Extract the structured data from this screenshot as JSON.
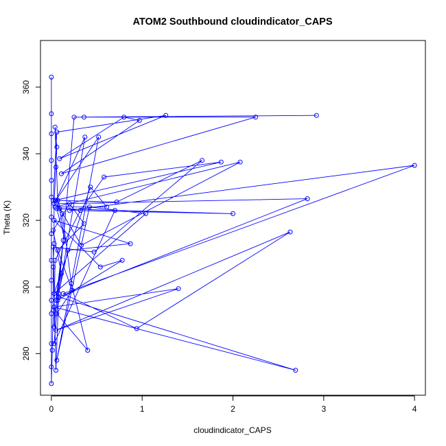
{
  "chart_data": {
    "type": "line",
    "markers": "open-circle",
    "title": "ATOM2 Southbound cloudindicator_CAPS",
    "xlabel": "cloudindicator_CAPS",
    "ylabel": "Theta (K)",
    "xlim": [
      -0.12,
      4.12
    ],
    "ylim": [
      267.5,
      374
    ],
    "xticks": [
      0,
      1,
      2,
      3,
      4
    ],
    "yticks": [
      280,
      300,
      320,
      340,
      360
    ],
    "grid": false,
    "legend": "none",
    "colors": {
      "series": "#0000ff",
      "axes": "#000000"
    },
    "series": [
      {
        "name": "cloudindicator_CAPS",
        "points": [
          [
            0,
            363
          ],
          [
            0,
            352
          ],
          [
            0,
            346
          ],
          [
            0,
            338
          ],
          [
            0,
            332
          ],
          [
            0,
            327
          ],
          [
            0,
            321
          ],
          [
            0,
            316
          ],
          [
            0,
            308
          ],
          [
            0,
            302
          ],
          [
            0,
            296
          ],
          [
            0,
            292
          ],
          [
            0,
            283
          ],
          [
            0,
            276
          ],
          [
            0,
            271
          ],
          [
            0.01,
            281
          ],
          [
            0.02,
            293
          ],
          [
            0.02,
            306
          ],
          [
            0.03,
            313
          ],
          [
            0.03,
            325
          ],
          [
            0.05,
            336
          ],
          [
            0.06,
            342
          ],
          [
            0.04,
            348
          ],
          [
            0.07,
            326
          ],
          [
            0.12,
            322
          ],
          [
            0.22,
            301
          ],
          [
            0.4,
            281
          ],
          [
            0.06,
            292
          ],
          [
            0.23,
            299
          ],
          [
            0.07,
            311
          ],
          [
            0.36,
            319
          ],
          [
            0.2,
            325
          ],
          [
            0.02,
            317
          ],
          [
            0.11,
            304
          ],
          [
            0.05,
            296
          ],
          [
            0.13,
            314
          ],
          [
            0.03,
            288
          ],
          [
            0.04,
            308
          ],
          [
            0.32,
            323
          ],
          [
            0.58,
            333
          ],
          [
            1.87,
            337.5
          ],
          [
            0.04,
            326
          ],
          [
            0.72,
            325.5
          ],
          [
            1.66,
            338
          ],
          [
            0.47,
            310.5
          ],
          [
            0.02,
            312
          ],
          [
            0.05,
            275
          ],
          [
            0.08,
            298
          ],
          [
            0.18,
            311
          ],
          [
            0.87,
            313
          ],
          [
            0.03,
            320
          ],
          [
            0.54,
            306
          ],
          [
            0.78,
            308
          ],
          [
            0.07,
            296
          ],
          [
            0.37,
            345
          ],
          [
            0.05,
            326
          ],
          [
            0.52,
            345
          ],
          [
            0.06,
            278
          ],
          [
            0.42,
            324
          ],
          [
            1.04,
            322
          ],
          [
            0.03,
            298
          ],
          [
            0.43,
            330
          ],
          [
            0.61,
            324
          ],
          [
            0.04,
            324
          ],
          [
            2.08,
            337.5
          ],
          [
            0.33,
            312.5
          ],
          [
            0.06,
            325
          ],
          [
            2.82,
            326.5
          ],
          [
            0.08,
            297
          ],
          [
            2.69,
            275
          ],
          [
            0.03,
            294
          ],
          [
            1.4,
            299.5
          ],
          [
            0.05,
            287
          ],
          [
            2.63,
            316.5
          ],
          [
            0.94,
            287.5
          ],
          [
            0.13,
            298
          ],
          [
            4,
            336.5
          ],
          [
            0.2,
            323
          ],
          [
            2,
            322
          ],
          [
            0.09,
            323.5
          ],
          [
            0.15,
            314
          ],
          [
            0.06,
            323.5
          ],
          [
            0.7,
            323
          ],
          [
            0.03,
            283
          ],
          [
            0.25,
            351
          ],
          [
            2.92,
            351.5
          ],
          [
            0.36,
            351
          ],
          [
            2.25,
            351
          ],
          [
            0.11,
            334
          ],
          [
            0.97,
            350
          ],
          [
            0.8,
            351
          ],
          [
            0.09,
            338.5
          ],
          [
            1.26,
            351.5
          ],
          [
            0.06,
            346.5
          ],
          [
            0.02,
            326
          ]
        ]
      }
    ]
  }
}
